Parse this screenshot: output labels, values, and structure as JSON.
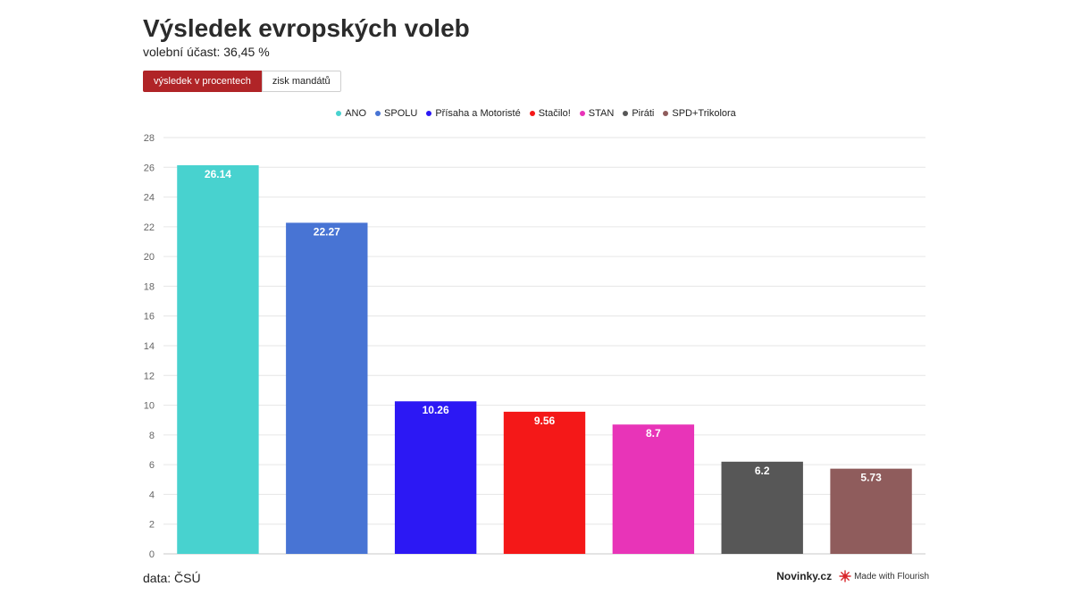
{
  "header": {
    "title": "Výsledek evropských voleb",
    "subtitle": "volební účast: 36,45 %"
  },
  "tabs": [
    {
      "label": "výsledek v procentech",
      "active": true
    },
    {
      "label": "zisk mandátů",
      "active": false
    }
  ],
  "chart_data": {
    "type": "bar",
    "categories": [
      "ANO",
      "SPOLU",
      "Přísaha a Motoristé",
      "Stačilo!",
      "STAN",
      "Piráti",
      "SPD+Trikolora"
    ],
    "values": [
      26.14,
      22.27,
      10.26,
      9.56,
      8.7,
      6.2,
      5.73
    ],
    "value_labels": [
      "26.14",
      "22.27",
      "10.26",
      "9.56",
      "8.7",
      "6.2",
      "5.73"
    ],
    "colors": [
      "#48d2cf",
      "#4874d4",
      "#2c18f4",
      "#f41818",
      "#e834b8",
      "#575757",
      "#8f5c5c"
    ],
    "ylim": [
      0,
      28
    ],
    "yticks": [
      "0",
      "2",
      "4",
      "6",
      "8",
      "10",
      "12",
      "14",
      "16",
      "18",
      "20",
      "22",
      "24",
      "26",
      "28"
    ],
    "grid": true,
    "legend_position": "top"
  },
  "footer": {
    "source": "data: ČSÚ",
    "brand": "Novinky.cz",
    "made_with": "Made with Flourish"
  }
}
